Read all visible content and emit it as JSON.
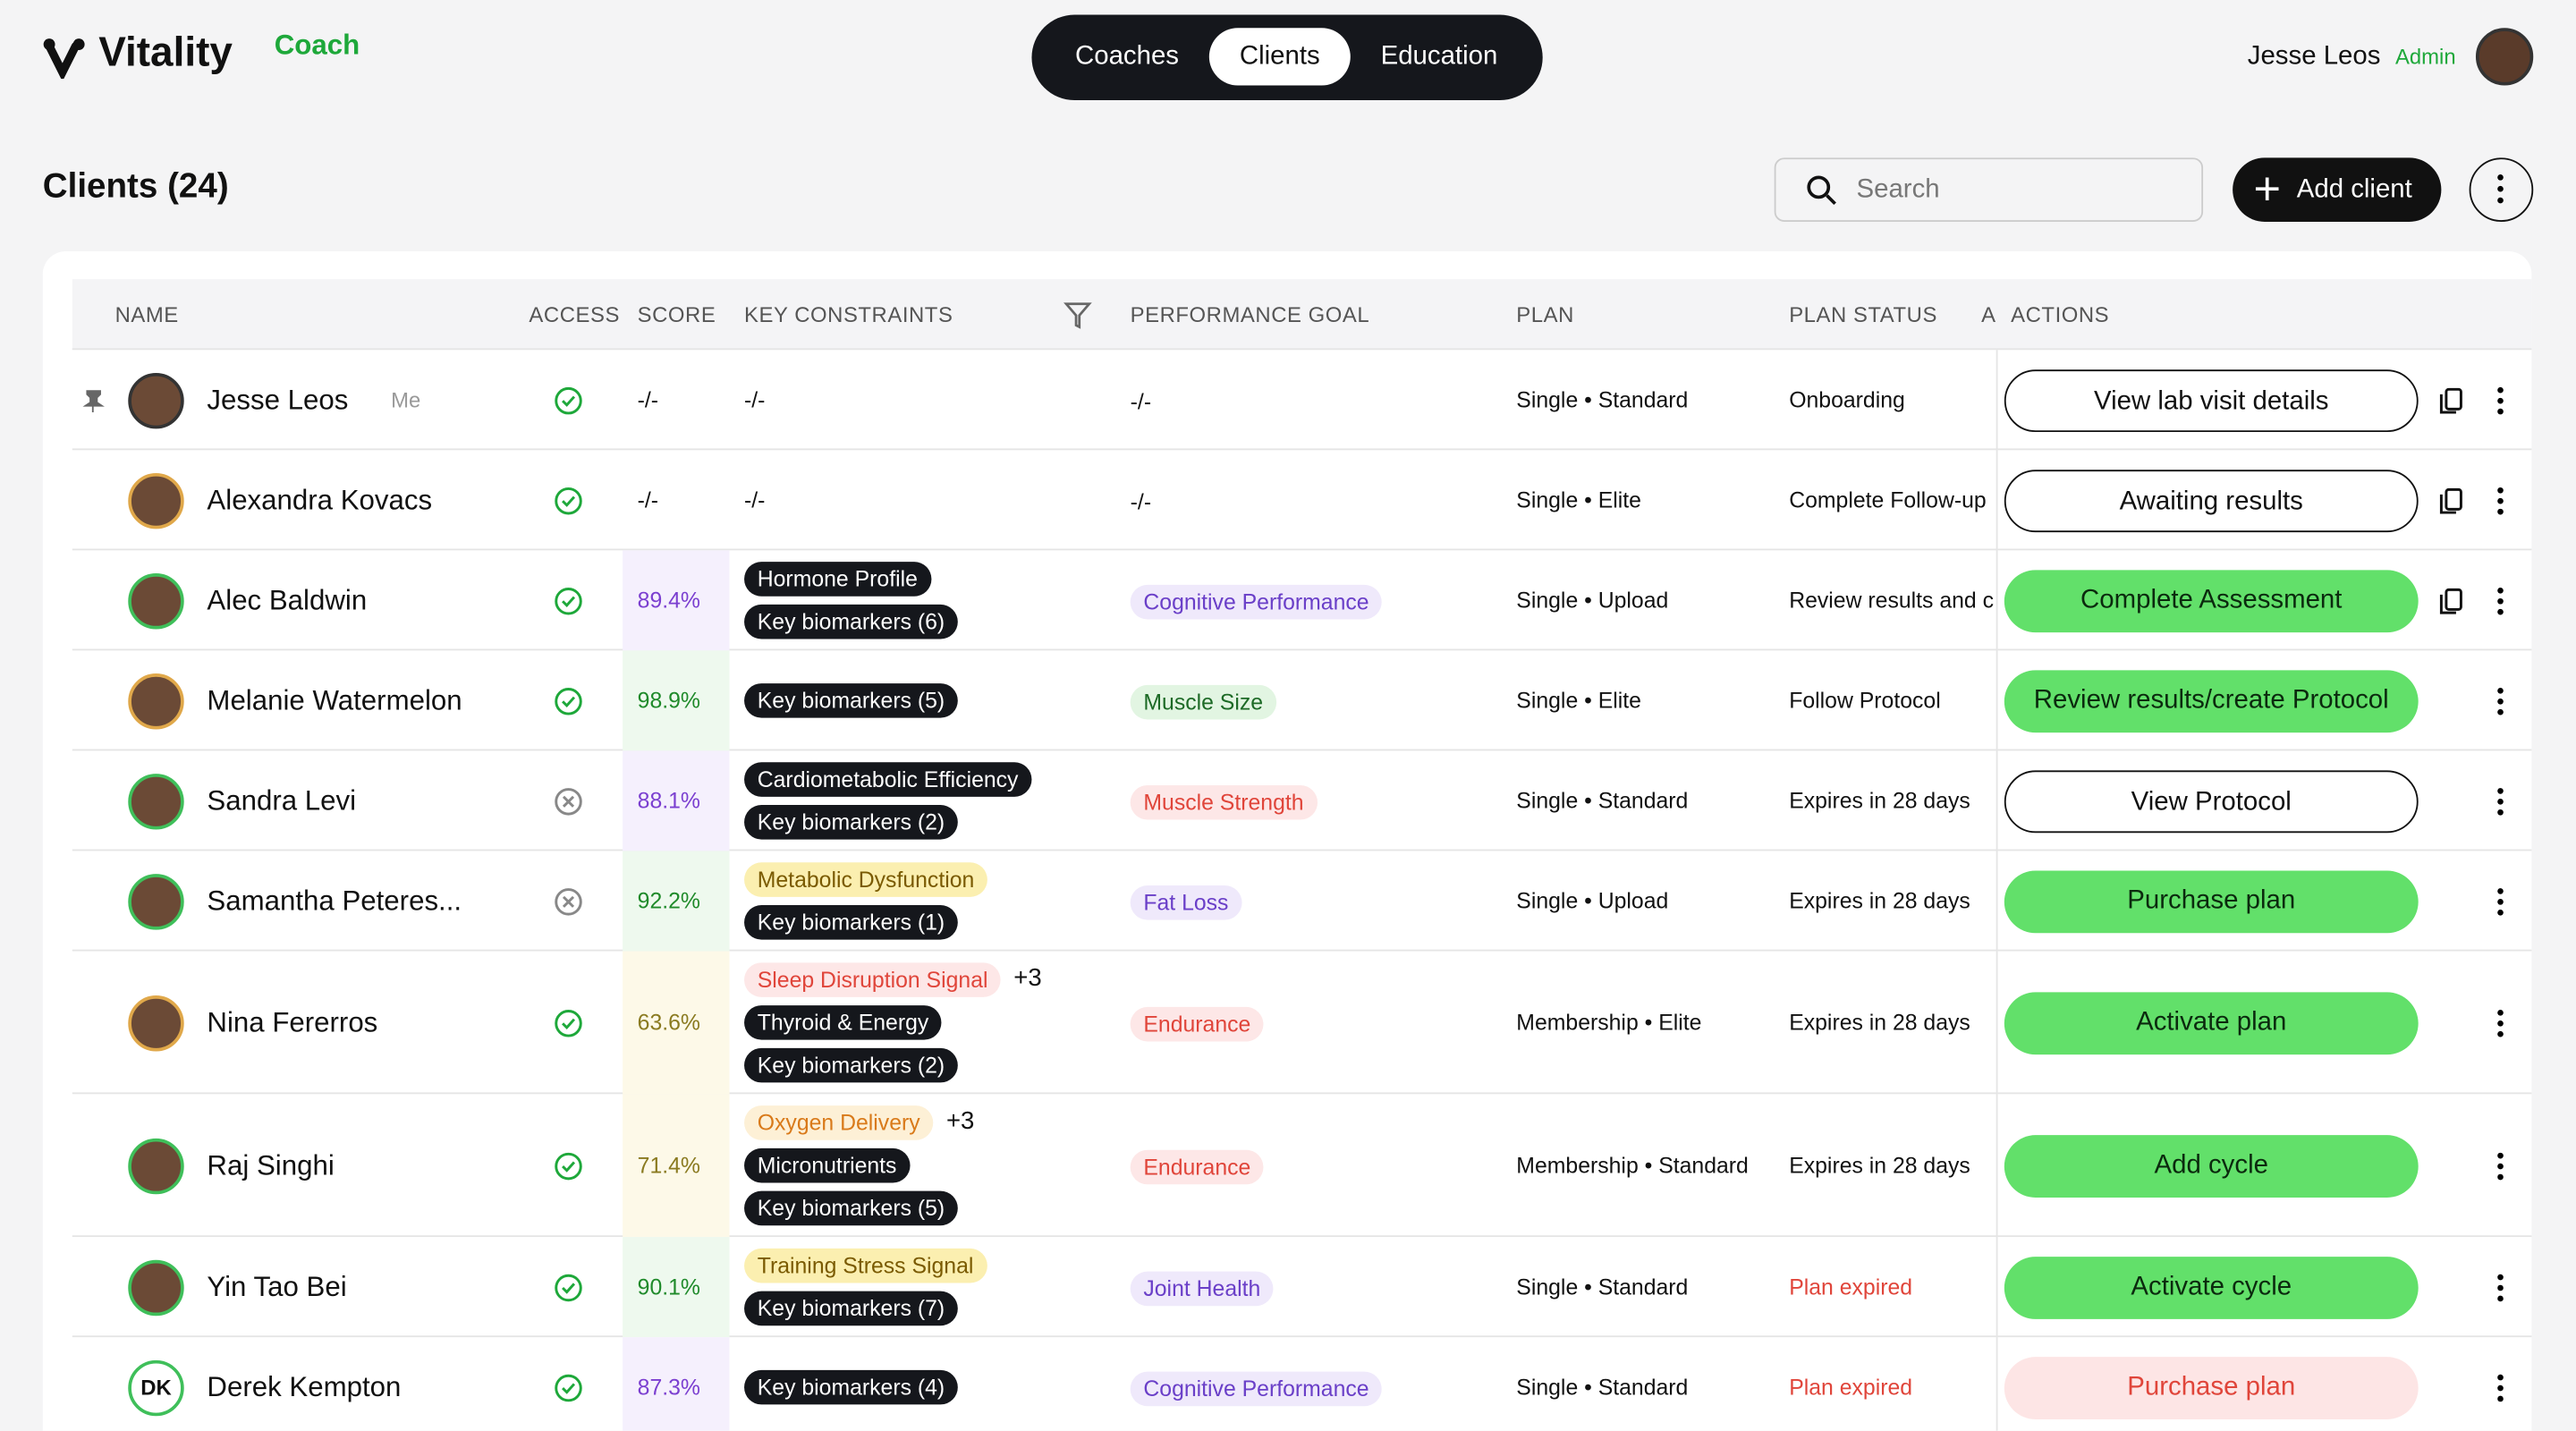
{
  "header": {
    "brand": "Vitality",
    "brand_sub": "Coach",
    "tabs": [
      "Coaches",
      "Clients",
      "Education"
    ],
    "active_tab": 1,
    "user_name": "Jesse Leos",
    "user_role": "Admin"
  },
  "page": {
    "title": "Clients (24)",
    "search_placeholder": "Search",
    "add_button": "Add client"
  },
  "table": {
    "columns": [
      "NAME",
      "ACCESS",
      "SCORE",
      "KEY CONSTRAINTS",
      "PERFORMANCE GOAL",
      "PLAN",
      "PLAN STATUS",
      "A",
      "ACTIONS"
    ],
    "rows": [
      {
        "pinned": true,
        "ring": "#333333",
        "name": "Jesse Leos",
        "tag": "Me",
        "access": "granted",
        "score": "-/-",
        "score_tone": "plain",
        "constraints": [
          {
            "text": "-/-",
            "tone": "plain"
          }
        ],
        "goal": "-/-",
        "goal_tone": "plain",
        "plan": "Single • Standard",
        "status": "Onboarding",
        "status_tone": "plain",
        "action": "View lab visit details",
        "action_tone": "outline",
        "copy": true
      },
      {
        "ring": "#e0a84a",
        "name": "Alexandra Kovacs",
        "access": "granted",
        "score": "-/-",
        "score_tone": "plain",
        "constraints": [
          {
            "text": "-/-",
            "tone": "plain"
          }
        ],
        "goal": "-/-",
        "goal_tone": "plain",
        "plan": "Single • Elite",
        "status": "Complete Follow-up",
        "status_tone": "plain",
        "action": "Awaiting results",
        "action_tone": "outline",
        "copy": true
      },
      {
        "ring": "#3fbf5a",
        "name": "Alec Baldwin",
        "access": "granted",
        "score": "89.4%",
        "score_tone": "purple",
        "constraints": [
          {
            "text": "Hormone Profile",
            "tone": "dark"
          },
          {
            "text": "Key biomarkers (6)",
            "tone": "dark"
          }
        ],
        "goal": "Cognitive Performance",
        "goal_tone": "purple",
        "plan": "Single • Upload",
        "status": "Review results and c",
        "status_tone": "plain",
        "action": "Complete Assessment",
        "action_tone": "green",
        "copy": true
      },
      {
        "ring": "#e0a84a",
        "name": "Melanie Watermelon",
        "access": "granted",
        "score": "98.9%",
        "score_tone": "green",
        "constraints": [
          {
            "text": "Key biomarkers (5)",
            "tone": "dark"
          }
        ],
        "goal": "Muscle Size",
        "goal_tone": "green",
        "plan": "Single • Elite",
        "status": "Follow Protocol",
        "status_tone": "plain",
        "action": "Review results/create Protocol",
        "action_tone": "green",
        "copy": false
      },
      {
        "ring": "#3fbf5a",
        "name": "Sandra Levi",
        "access": "revoked",
        "score": "88.1%",
        "score_tone": "purple",
        "constraints": [
          {
            "text": "Cardiometabolic Efficiency",
            "tone": "dark"
          },
          {
            "text": "Key biomarkers (2)",
            "tone": "dark"
          }
        ],
        "goal": "Muscle Strength",
        "goal_tone": "red",
        "plan": "Single • Standard",
        "status": "Expires in 28 days",
        "status_tone": "plain",
        "action": "View Protocol",
        "action_tone": "outline",
        "copy": false
      },
      {
        "ring": "#3fbf5a",
        "name": "Samantha Peteres...",
        "access": "revoked",
        "score": "92.2%",
        "score_tone": "green",
        "constraints": [
          {
            "text": "Metabolic Dysfunction",
            "tone": "yellow"
          },
          {
            "text": "Key biomarkers (1)",
            "tone": "dark"
          }
        ],
        "goal": "Fat Loss",
        "goal_tone": "purple",
        "plan": "Single • Upload",
        "status": "Expires in 28 days",
        "status_tone": "plain",
        "action": "Purchase plan",
        "action_tone": "green",
        "copy": false
      },
      {
        "ring": "#e0a84a",
        "name": "Nina Fererros",
        "access": "granted",
        "score": "63.6%",
        "score_tone": "yellow",
        "constraints": [
          {
            "text": "Sleep Disruption Signal",
            "tone": "red"
          },
          {
            "text": "Thyroid & Energy",
            "tone": "dark"
          },
          {
            "text": "Key biomarkers (2)",
            "tone": "dark"
          }
        ],
        "extra": "+3",
        "goal": "Endurance",
        "goal_tone": "red",
        "plan": "Membership • Elite",
        "status": "Expires in 28 days",
        "status_tone": "plain",
        "action": "Activate plan",
        "action_tone": "green",
        "copy": false
      },
      {
        "ring": "#3fbf5a",
        "name": "Raj Singhi",
        "access": "granted",
        "score": "71.4%",
        "score_tone": "yellow",
        "constraints": [
          {
            "text": "Oxygen Delivery",
            "tone": "orange"
          },
          {
            "text": "Micronutrients",
            "tone": "dark"
          },
          {
            "text": "Key biomarkers (5)",
            "tone": "dark"
          }
        ],
        "extra": "+3",
        "goal": "Endurance",
        "goal_tone": "red",
        "plan": "Membership • Standard",
        "status": "Expires in 28 days",
        "status_tone": "plain",
        "action": "Add cycle",
        "action_tone": "green",
        "copy": false
      },
      {
        "ring": "#3fbf5a",
        "name": "Yin Tao Bei",
        "access": "granted",
        "score": "90.1%",
        "score_tone": "green",
        "constraints": [
          {
            "text": "Training Stress Signal",
            "tone": "yellow"
          },
          {
            "text": "Key biomarkers (7)",
            "tone": "dark"
          }
        ],
        "goal": "Joint Health",
        "goal_tone": "purple",
        "plan": "Single • Standard",
        "status": "Plan expired",
        "status_tone": "red",
        "action": "Activate cycle",
        "action_tone": "green",
        "copy": false
      },
      {
        "ring": "#3fbf5a",
        "initials": "DK",
        "name": "Derek Kempton",
        "access": "granted",
        "score": "87.3%",
        "score_tone": "purple",
        "constraints": [
          {
            "text": "Key biomarkers (4)",
            "tone": "dark"
          }
        ],
        "goal": "Cognitive Performance",
        "goal_tone": "purple",
        "plan": "Single • Standard",
        "status": "Plan expired",
        "status_tone": "red",
        "action": "Purchase plan",
        "action_tone": "pink",
        "copy": false
      }
    ]
  }
}
